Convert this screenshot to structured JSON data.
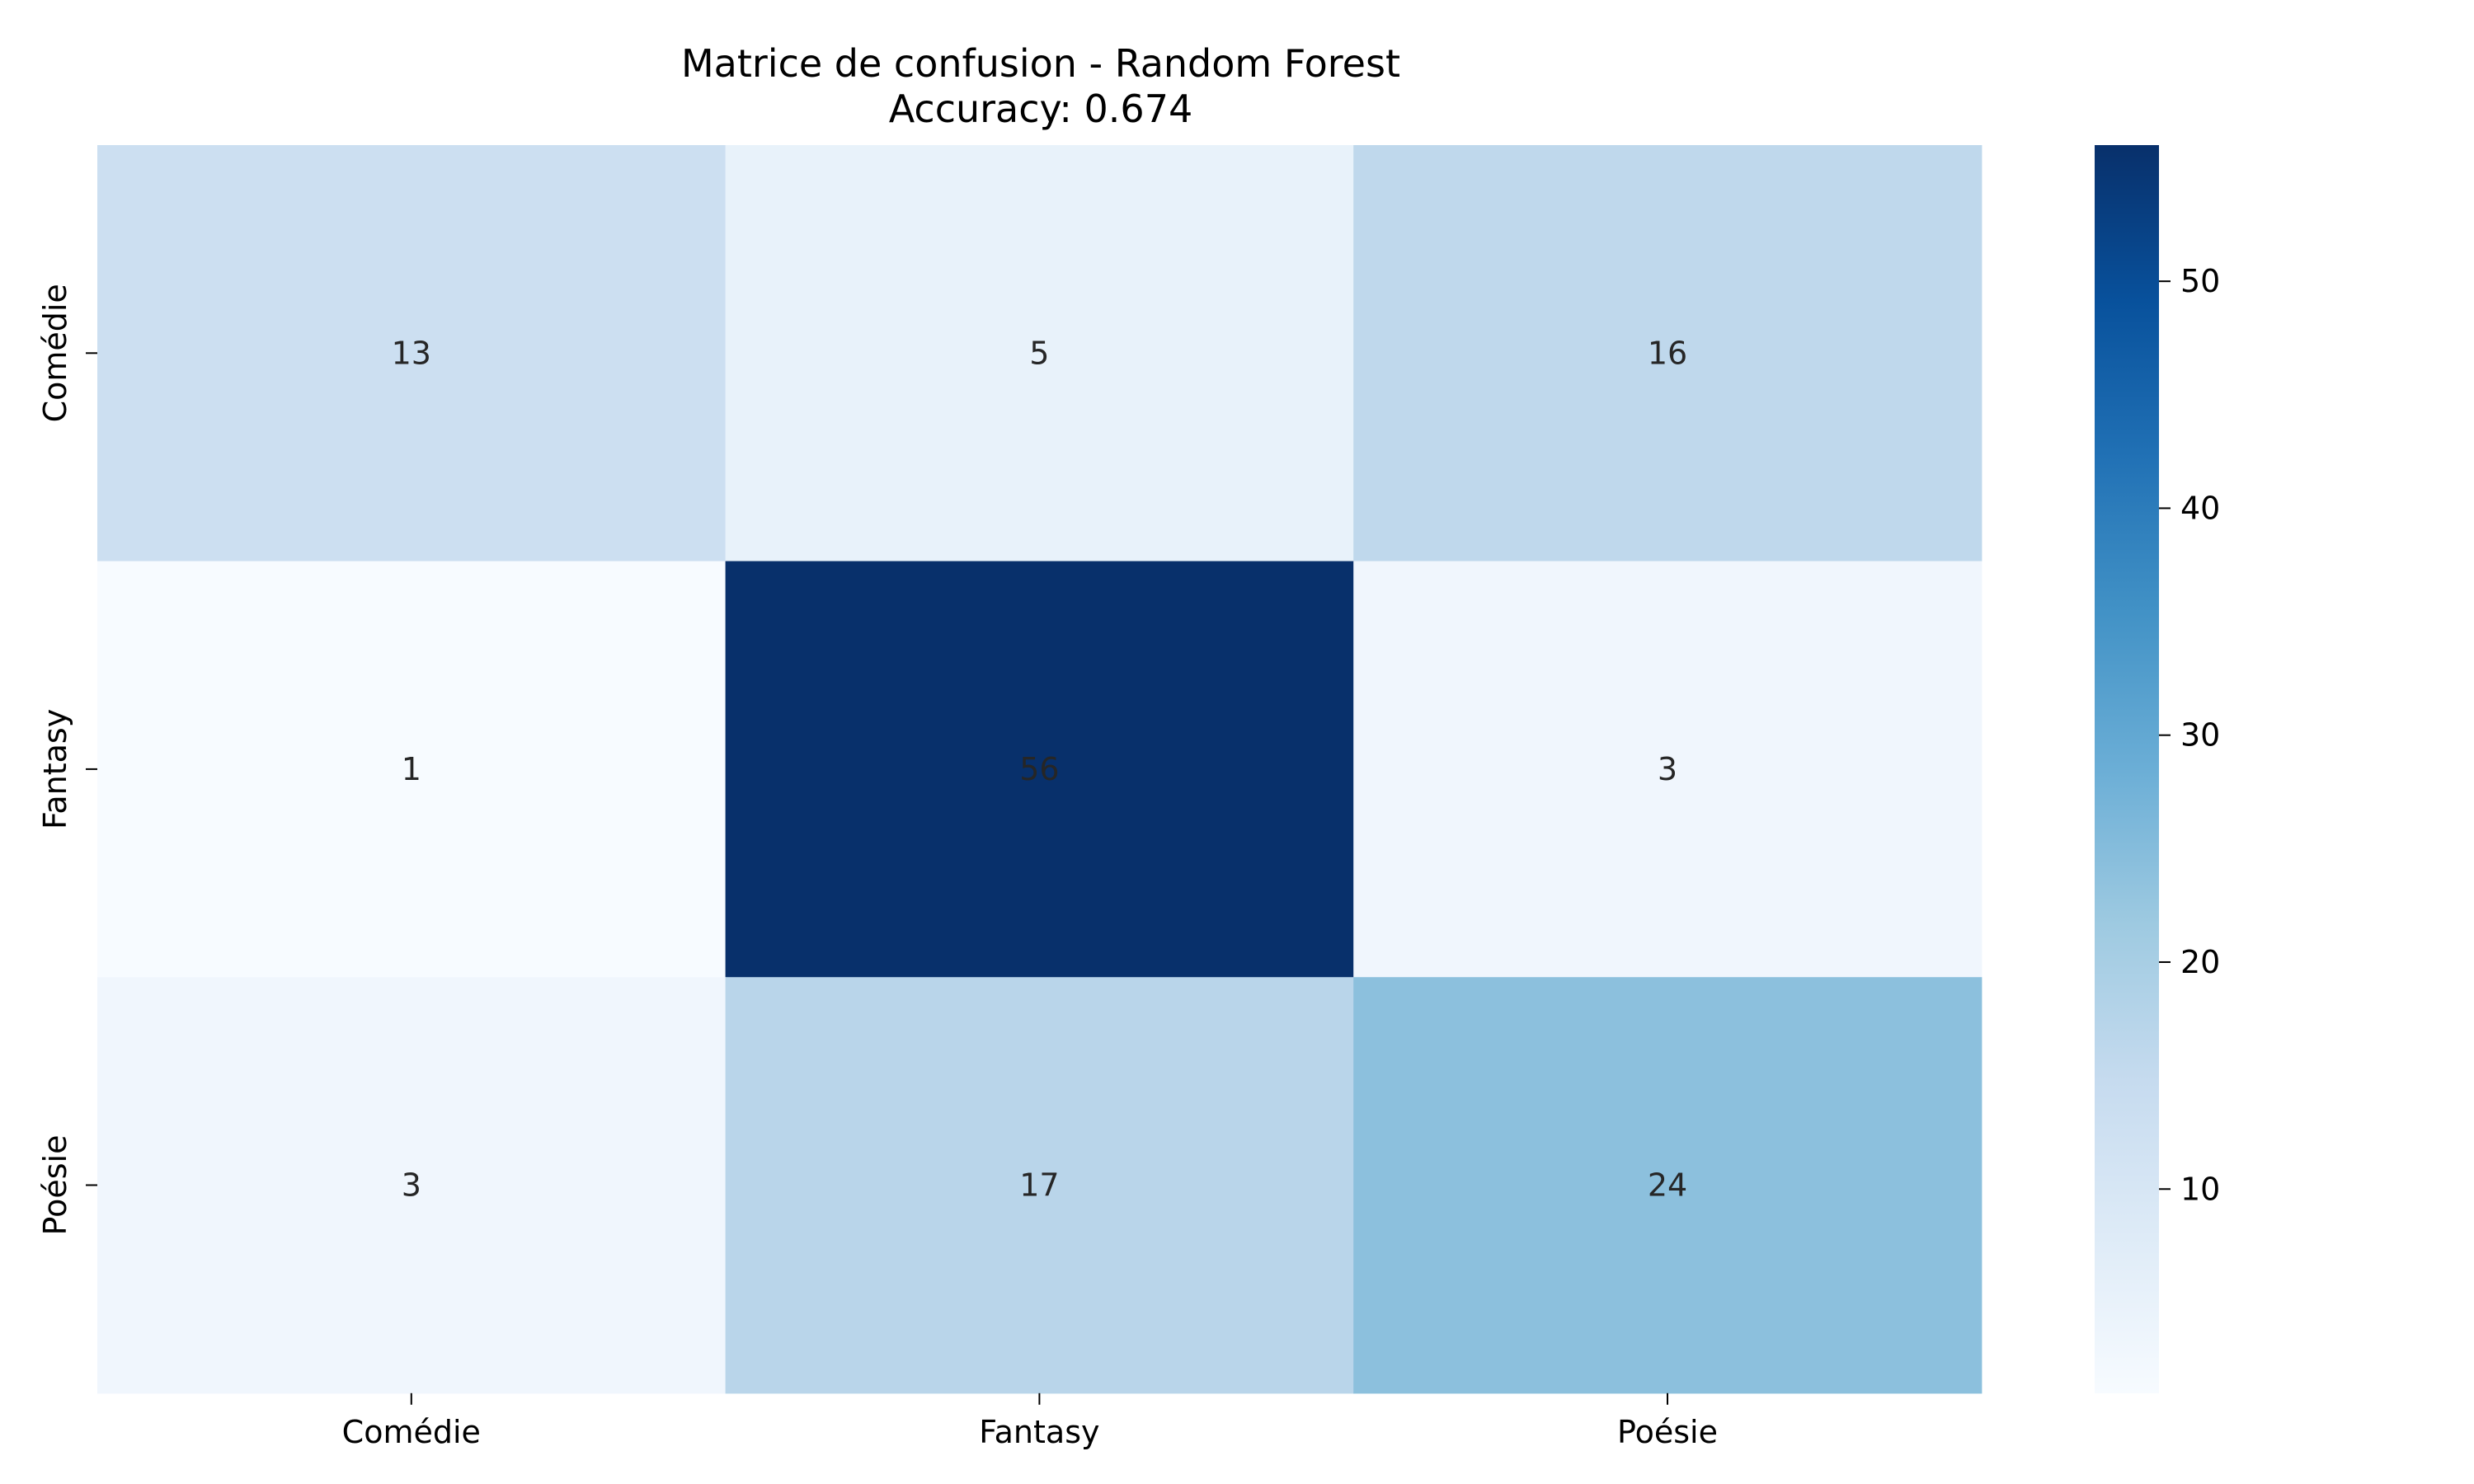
{
  "chart_data": {
    "type": "heatmap",
    "title": "Matrice de confusion - Random Forest",
    "subtitle": "Accuracy: 0.674",
    "xlabel": "",
    "ylabel": "",
    "x_categories": [
      "Comédie",
      "Fantasy",
      "Poésie"
    ],
    "y_categories": [
      "Comédie",
      "Fantasy",
      "Poésie"
    ],
    "values": [
      [
        13,
        5,
        16
      ],
      [
        1,
        56,
        3
      ],
      [
        3,
        17,
        24
      ]
    ],
    "colormap": "Blues",
    "colorbar": {
      "min": 1,
      "max": 56,
      "ticks": [
        10,
        20,
        30,
        40,
        50
      ]
    },
    "grid": false,
    "legend": "colorbar-right"
  }
}
